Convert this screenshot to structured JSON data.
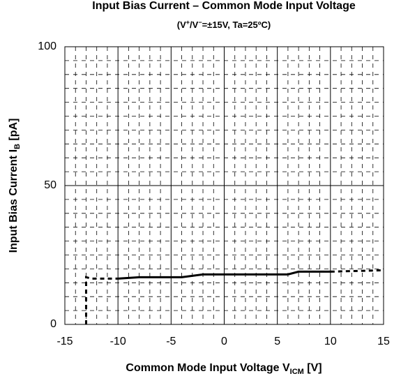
{
  "chart_data": {
    "type": "line",
    "title": "Input Bias Current – Common Mode Input Voltage",
    "subtitle": [
      "(V",
      "+",
      "/V",
      "−",
      "=±15V, Ta=25ºC)"
    ],
    "x_label": [
      "Common Mode Input Voltage V",
      "ICM",
      " [V]"
    ],
    "y_label": [
      "Input Bias Current I",
      "B",
      " [pA]"
    ],
    "xlim": [
      -15,
      15
    ],
    "ylim": [
      0,
      100
    ],
    "xticks": [
      -15,
      -10,
      -5,
      0,
      5,
      10,
      15
    ],
    "yticks": [
      0,
      50,
      100
    ],
    "minor_xticks": [
      -14,
      -13,
      -12,
      -11,
      -9,
      -8,
      -7,
      -6,
      -4,
      -3,
      -2,
      -1,
      1,
      2,
      3,
      4,
      6,
      7,
      8,
      9,
      11,
      12,
      13,
      14
    ],
    "minor_yticks": [
      5,
      10,
      15,
      20,
      25,
      30,
      35,
      40,
      45,
      55,
      60,
      65,
      70,
      75,
      80,
      85,
      90,
      95
    ],
    "grid": true,
    "color": "#000000",
    "series": [
      {
        "dashed": true,
        "x": [
          -13,
          -13,
          -12.5,
          -10
        ],
        "values": [
          0,
          17,
          16.5,
          16.5
        ]
      },
      {
        "dashed": false,
        "x": [
          -10,
          -8,
          -4,
          -2,
          0,
          6,
          7,
          10
        ],
        "values": [
          16.5,
          17,
          17,
          18,
          18,
          18,
          19,
          19
        ]
      },
      {
        "dashed": true,
        "x": [
          10,
          15
        ],
        "values": [
          19,
          19.5
        ]
      }
    ]
  }
}
